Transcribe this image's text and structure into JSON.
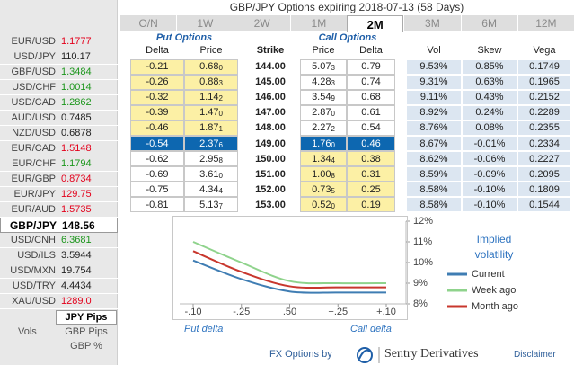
{
  "title": "GBP/JPY Options expiring 2018-07-13 (58 Days)",
  "tabs": [
    "O/N",
    "1W",
    "2W",
    "1M",
    "2M",
    "3M",
    "6M",
    "12M"
  ],
  "selected_tab": 4,
  "pairs": [
    {
      "name": "EUR/USD",
      "price": "1.1777",
      "color": "#e3001b"
    },
    {
      "name": "USD/JPY",
      "price": "110.17",
      "color": "#222222"
    },
    {
      "name": "GBP/USD",
      "price": "1.3484",
      "color": "#1c961c"
    },
    {
      "name": "USD/CHF",
      "price": "1.0014",
      "color": "#1c961c"
    },
    {
      "name": "USD/CAD",
      "price": "1.2862",
      "color": "#1c961c"
    },
    {
      "name": "AUD/USD",
      "price": "0.7485",
      "color": "#222222"
    },
    {
      "name": "NZD/USD",
      "price": "0.6878",
      "color": "#222222"
    },
    {
      "name": "EUR/CAD",
      "price": "1.5148",
      "color": "#e3001b"
    },
    {
      "name": "EUR/CHF",
      "price": "1.1794",
      "color": "#1c961c"
    },
    {
      "name": "EUR/GBP",
      "price": "0.8734",
      "color": "#e3001b"
    },
    {
      "name": "EUR/JPY",
      "price": "129.75",
      "color": "#e3001b"
    },
    {
      "name": "EUR/AUD",
      "price": "1.5735",
      "color": "#e3001b"
    },
    {
      "name": "GBP/JPY",
      "price": "148.56",
      "color": "#000000"
    },
    {
      "name": "USD/CNH",
      "price": "6.3681",
      "color": "#1c961c"
    },
    {
      "name": "USD/ILS",
      "price": "3.5944",
      "color": "#222222"
    },
    {
      "name": "USD/MXN",
      "price": "19.754",
      "color": "#222222"
    },
    {
      "name": "USD/TRY",
      "price": "4.4434",
      "color": "#222222"
    },
    {
      "name": "XAU/USD",
      "price": "1289.0",
      "color": "#e3001b"
    }
  ],
  "selected_pair": 12,
  "unit_label": "Vols",
  "units": [
    "JPY Pips",
    "GBP Pips",
    "GBP %"
  ],
  "selected_unit": 0,
  "table": {
    "put_header": "Put Options",
    "call_header": "Call Options",
    "columns": [
      "Delta",
      "Price",
      "Strike",
      "Price",
      "Delta",
      "Vol",
      "Skew",
      "Vega"
    ],
    "atm_row": 5,
    "rows": [
      [
        "-0.21",
        {
          "main": "0.68",
          "pip": "0"
        },
        "144.00",
        {
          "main": "5.07",
          "pip": "3"
        },
        "0.79",
        "9.53%",
        "0.85%",
        "0.1749"
      ],
      [
        "-0.26",
        {
          "main": "0.88",
          "pip": "3"
        },
        "145.00",
        {
          "main": "4.28",
          "pip": "3"
        },
        "0.74",
        "9.31%",
        "0.63%",
        "0.1965"
      ],
      [
        "-0.32",
        {
          "main": "1.14",
          "pip": "2"
        },
        "146.00",
        {
          "main": "3.54",
          "pip": "9"
        },
        "0.68",
        "9.11%",
        "0.43%",
        "0.2152"
      ],
      [
        "-0.39",
        {
          "main": "1.47",
          "pip": "0"
        },
        "147.00",
        {
          "main": "2.87",
          "pip": "0"
        },
        "0.61",
        "8.92%",
        "0.24%",
        "0.2289"
      ],
      [
        "-0.46",
        {
          "main": "1.87",
          "pip": "1"
        },
        "148.00",
        {
          "main": "2.27",
          "pip": "2"
        },
        "0.54",
        "8.76%",
        "0.08%",
        "0.2355"
      ],
      [
        "-0.54",
        {
          "main": "2.37",
          "pip": "6"
        },
        "149.00",
        {
          "main": "1.76",
          "pip": "0"
        },
        "0.46",
        "8.67%",
        "-0.01%",
        "0.2334"
      ],
      [
        "-0.62",
        {
          "main": "2.95",
          "pip": "8"
        },
        "150.00",
        {
          "main": "1.34",
          "pip": "4"
        },
        "0.38",
        "8.62%",
        "-0.06%",
        "0.2227"
      ],
      [
        "-0.69",
        {
          "main": "3.61",
          "pip": "0"
        },
        "151.00",
        {
          "main": "1.00",
          "pip": "8"
        },
        "0.31",
        "8.59%",
        "-0.09%",
        "0.2095"
      ],
      [
        "-0.75",
        {
          "main": "4.34",
          "pip": "4"
        },
        "152.00",
        {
          "main": "0.73",
          "pip": "5"
        },
        "0.25",
        "8.58%",
        "-0.10%",
        "0.1809"
      ],
      [
        "-0.81",
        {
          "main": "5.13",
          "pip": "7"
        },
        "153.00",
        {
          "main": "0.52",
          "pip": "0"
        },
        "0.19",
        "8.58%",
        "-0.10%",
        "0.1544"
      ]
    ]
  },
  "smile_chart": {
    "type": "line",
    "legend_title": "Implied volatility",
    "categories": [
      "-.10",
      "-.25",
      ".50",
      "+.25",
      "+.10"
    ],
    "ylim": [
      8,
      12
    ],
    "yticks": [
      {
        "value": 12,
        "label": "12%"
      },
      {
        "value": 11,
        "label": "11%"
      },
      {
        "value": 10,
        "label": "10%"
      },
      {
        "value": 9,
        "label": "9%"
      },
      {
        "value": 8,
        "label": "8%"
      }
    ],
    "series": [
      {
        "name": "Current",
        "color": "#3f7db3",
        "values": [
          10.1,
          9.2,
          8.6,
          8.55,
          8.55
        ]
      },
      {
        "name": "Week ago",
        "color": "#8fd38c",
        "values": [
          11.0,
          10.0,
          9.1,
          9.0,
          9.0
        ]
      },
      {
        "name": "Month ago",
        "color": "#c8372d",
        "values": [
          10.55,
          9.55,
          8.85,
          8.8,
          8.8
        ]
      }
    ],
    "put_axis_label": "Put delta",
    "call_axis_label": "Call delta"
  },
  "footer": {
    "by": "FX Options by",
    "brand": "Sentry Derivatives",
    "disclaimer": "Disclaimer"
  }
}
